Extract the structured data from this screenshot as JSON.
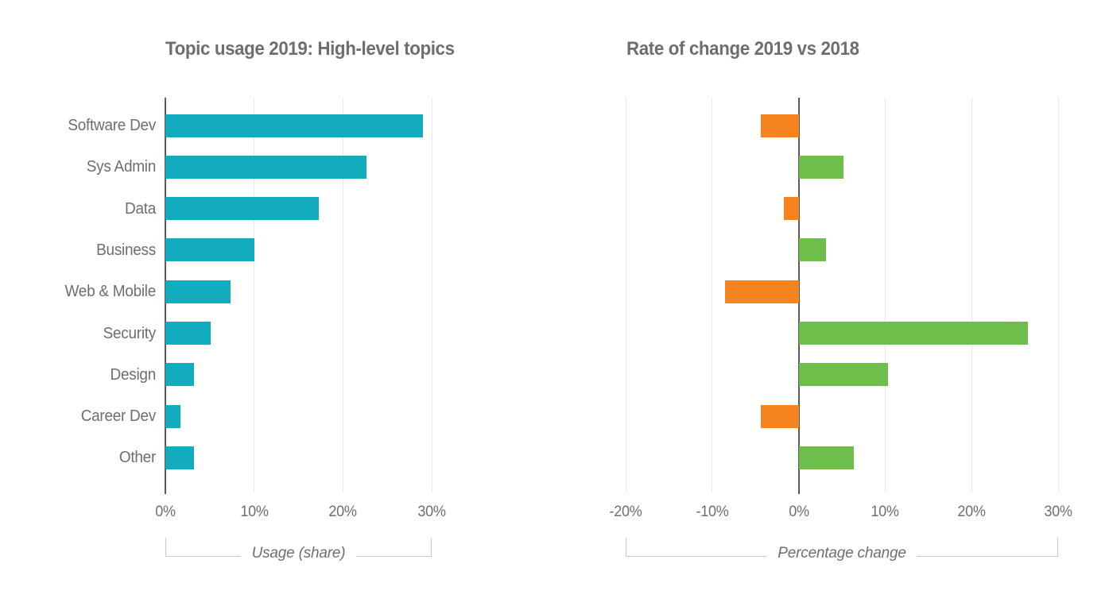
{
  "page": {
    "background": "#ffffff",
    "text_color": "#6d6e71",
    "grid_color": "#e7e8e9",
    "axis_color": "#595a5c",
    "bracket_color": "#c6c8ca"
  },
  "chart_data": [
    {
      "type": "bar",
      "orientation": "horizontal",
      "title": "Topic usage 2019: High-level topics",
      "categories": [
        "Software Dev",
        "Sys Admin",
        "Data",
        "Business",
        "Web & Mobile",
        "Security",
        "Design",
        "Career Dev",
        "Other"
      ],
      "values": [
        29.0,
        22.7,
        17.3,
        10.0,
        7.3,
        5.1,
        3.2,
        1.7,
        3.2
      ],
      "unit": "%",
      "xlabel": "Usage (share)",
      "xlim": [
        0,
        30
      ],
      "ticks": [
        {
          "value": 0,
          "label": "0%"
        },
        {
          "value": 10,
          "label": "10%"
        },
        {
          "value": 20,
          "label": "20%"
        },
        {
          "value": 30,
          "label": "30%"
        }
      ],
      "bar_color": "#12acbe",
      "grid": true,
      "legend": "none",
      "show_category_labels": true
    },
    {
      "type": "bar",
      "orientation": "horizontal",
      "title": "Rate of change 2019 vs 2018",
      "categories": [
        "Software Dev",
        "Sys Admin",
        "Data",
        "Business",
        "Web & Mobile",
        "Security",
        "Design",
        "Career Dev",
        "Other"
      ],
      "values": [
        -4.4,
        5.2,
        -1.7,
        3.2,
        -8.5,
        26.5,
        10.3,
        -4.4,
        6.4
      ],
      "unit": "%",
      "xlabel": "Percentage change",
      "xlim": [
        -20,
        30
      ],
      "ticks": [
        {
          "value": -20,
          "label": "-20%"
        },
        {
          "value": -10,
          "label": "-10%"
        },
        {
          "value": 0,
          "label": "0%"
        },
        {
          "value": 10,
          "label": "10%"
        },
        {
          "value": 20,
          "label": "20%"
        },
        {
          "value": 30,
          "label": "30%"
        }
      ],
      "positive_color": "#6dbe4b",
      "negative_color": "#f5831f",
      "grid": true,
      "legend": "none",
      "show_category_labels": false
    }
  ]
}
